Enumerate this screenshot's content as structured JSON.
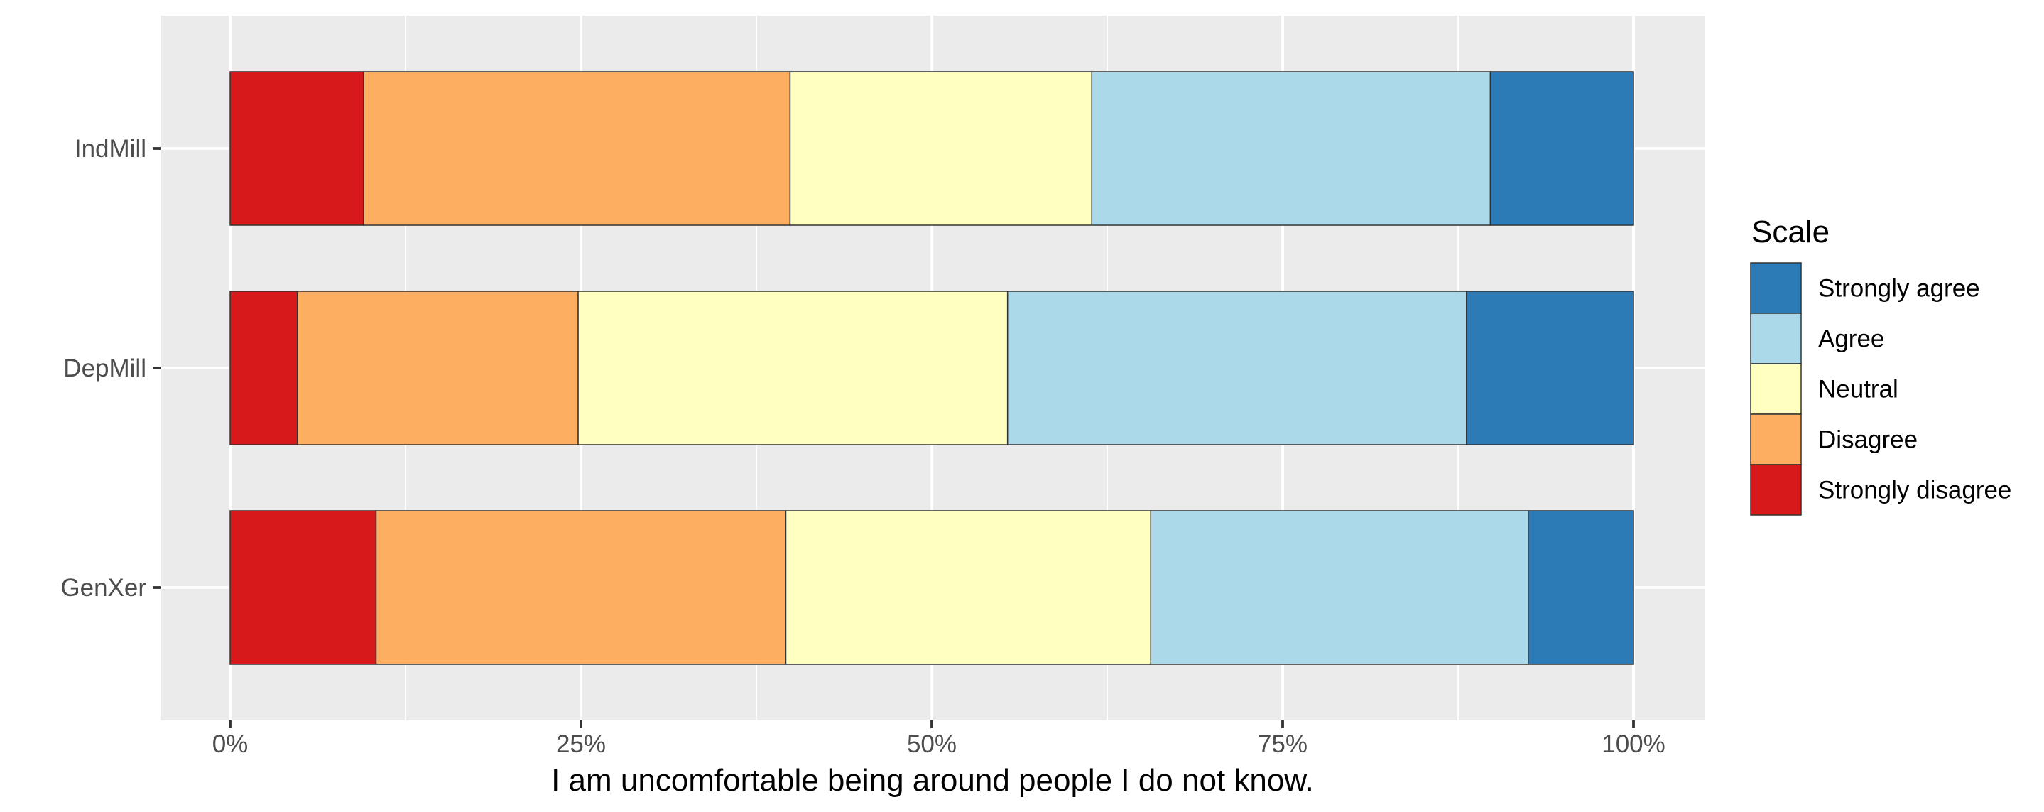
{
  "chart_data": {
    "type": "bar",
    "orientation": "horizontal",
    "stacked": "percent",
    "categories": [
      "IndMill",
      "DepMill",
      "GenXer"
    ],
    "series": [
      {
        "name": "Strongly disagree",
        "color": "#d7191c",
        "values": [
          9.5,
          4.8,
          10.4
        ]
      },
      {
        "name": "Disagree",
        "color": "#fdae61",
        "values": [
          30.4,
          20.0,
          29.2
        ]
      },
      {
        "name": "Neutral",
        "color": "#ffffbf",
        "values": [
          21.5,
          30.6,
          26.0
        ]
      },
      {
        "name": "Agree",
        "color": "#abd9e9",
        "values": [
          28.4,
          32.7,
          26.9
        ]
      },
      {
        "name": "Strongly agree",
        "color": "#2c7bb6",
        "values": [
          10.2,
          11.9,
          7.5
        ]
      }
    ],
    "xlabel": "I am uncomfortable being around people I do not know.",
    "ylabel": "",
    "xlim": [
      0,
      100
    ],
    "x_ticks": [
      "0%",
      "25%",
      "50%",
      "75%",
      "100%"
    ],
    "legend": {
      "title": "Scale",
      "placement": "right",
      "order": [
        "Strongly agree",
        "Agree",
        "Neutral",
        "Disagree",
        "Strongly disagree"
      ]
    },
    "grid": true
  }
}
